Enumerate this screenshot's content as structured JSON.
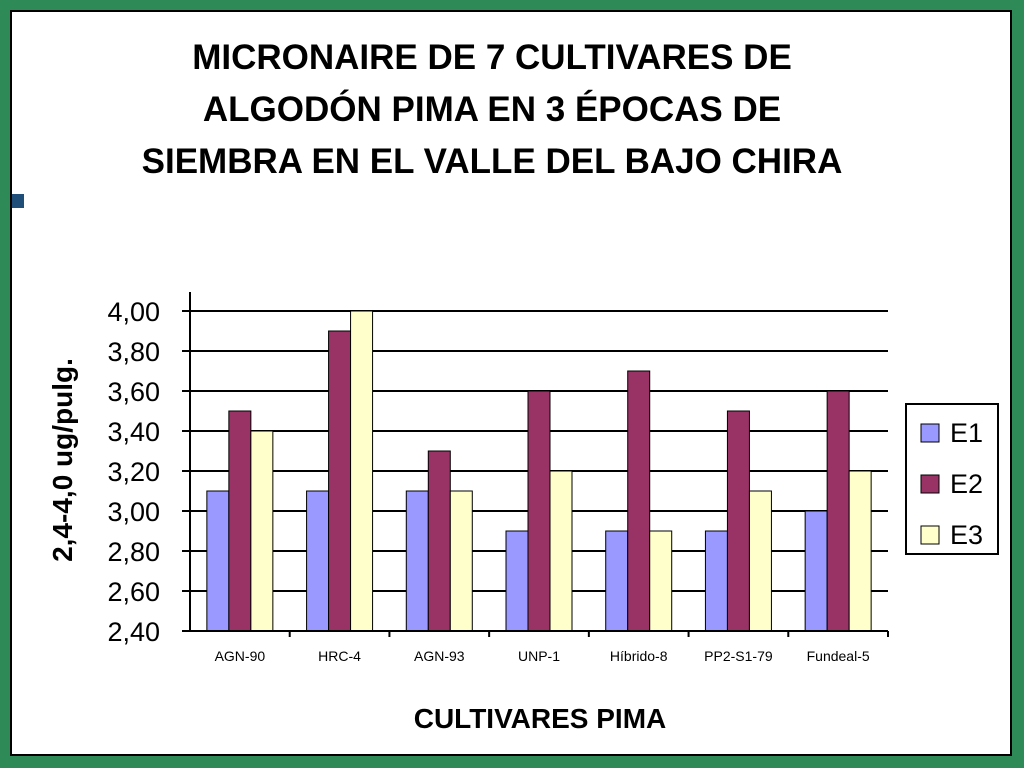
{
  "chart_data": {
    "type": "bar",
    "title": "MICRONAIRE DE 7 CULTIVARES DE ALGODÓN PIMA EN 3 ÉPOCAS DE SIEMBRA EN EL VALLE DEL BAJO CHIRA",
    "xlabel": "CULTIVARES  PIMA",
    "ylabel": "2,4-4,0 ug/pulg.",
    "ylim": [
      2.4,
      4.0
    ],
    "yticks": [
      "4,00",
      "3,80",
      "3,60",
      "3,40",
      "3,20",
      "3,00",
      "2,80",
      "2,60",
      "2,40"
    ],
    "categories": [
      "AGN-90",
      "HRC-4",
      "AGN-93",
      "UNP-1",
      "Híbrido-8",
      "PP2-S1-79",
      "Fundeal-5"
    ],
    "series": [
      {
        "name": "E1",
        "color": "#9999ff",
        "values": [
          3.1,
          3.1,
          3.1,
          2.9,
          2.9,
          2.9,
          3.0
        ]
      },
      {
        "name": "E2",
        "color": "#993366",
        "values": [
          3.5,
          3.9,
          3.3,
          3.6,
          3.7,
          3.5,
          3.6
        ]
      },
      {
        "name": "E3",
        "color": "#ffffcc",
        "values": [
          3.4,
          4.0,
          3.1,
          3.2,
          2.9,
          3.1,
          3.2
        ]
      }
    ],
    "grid": true,
    "legend": "right"
  }
}
